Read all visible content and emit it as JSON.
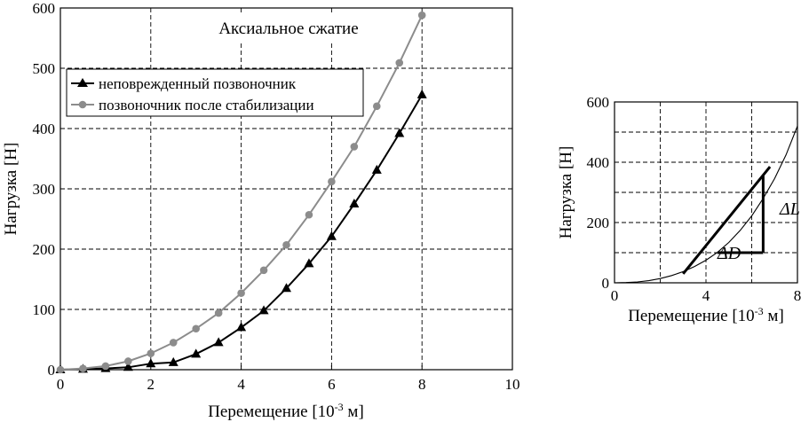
{
  "chart_data": [
    {
      "type": "line",
      "annotation": "Аксиальное сжатие",
      "xlabel": "Перемещение [10-3 м]",
      "ylabel": "Нагрузка [Н]",
      "xlim": [
        0,
        10
      ],
      "ylim": [
        0,
        600
      ],
      "xticks": [
        "0",
        "2",
        "4",
        "6",
        "8",
        "10"
      ],
      "yticks": [
        "0",
        "100",
        "200",
        "300",
        "400",
        "500",
        "600"
      ],
      "grid": true,
      "legend_position": "top-left",
      "series": [
        {
          "name": "неповрежденный позвоночник",
          "color": "#000000",
          "marker": "triangle",
          "x": [
            0,
            0.5,
            1,
            1.5,
            2,
            2.5,
            3,
            3.5,
            4,
            4.5,
            5,
            5.5,
            6,
            6.5,
            7,
            7.5,
            8
          ],
          "y": [
            0,
            1,
            2,
            4,
            10,
            12,
            26,
            45,
            70,
            98,
            135,
            176,
            221,
            275,
            331,
            392,
            456
          ]
        },
        {
          "name": "позвоночник после стабилизации",
          "color": "#8c8c8c",
          "marker": "circle",
          "x": [
            0,
            0.5,
            1,
            1.5,
            2,
            2.5,
            3,
            3.5,
            4,
            4.5,
            5,
            5.5,
            6,
            6.5,
            7,
            7.5,
            8
          ],
          "y": [
            0,
            2,
            6,
            14,
            27,
            45,
            68,
            94,
            127,
            165,
            207,
            257,
            312,
            370,
            437,
            509,
            588
          ]
        }
      ]
    },
    {
      "type": "line",
      "xlabel": "Перемещение [10-3 м]",
      "ylabel": "Нагрузка [Н]",
      "xlim": [
        0,
        8
      ],
      "ylim": [
        0,
        600
      ],
      "xticks": [
        "0",
        "4",
        "8"
      ],
      "yticks": [
        "0",
        "200",
        "400",
        "600"
      ],
      "grid": true,
      "annotations": [
        "ΔL",
        "ΔD"
      ],
      "series": [
        {
          "x": [
            0,
            0.5,
            1,
            1.5,
            2,
            2.5,
            3,
            3.5,
            4,
            4.5,
            5,
            5.5,
            6,
            6.5,
            7,
            7.5,
            8
          ],
          "y": [
            0,
            1,
            3,
            7,
            14,
            24,
            37,
            54,
            75,
            101,
            134,
            174,
            222,
            280,
            346,
            424,
            520
          ]
        },
        {
          "x": [
            3.0,
            6.8
          ],
          "y": [
            30,
            385
          ]
        }
      ],
      "delta_triangle": {
        "x_from": 4.5,
        "x_to": 6.5,
        "y_from": 100,
        "y_to": 355
      }
    }
  ]
}
